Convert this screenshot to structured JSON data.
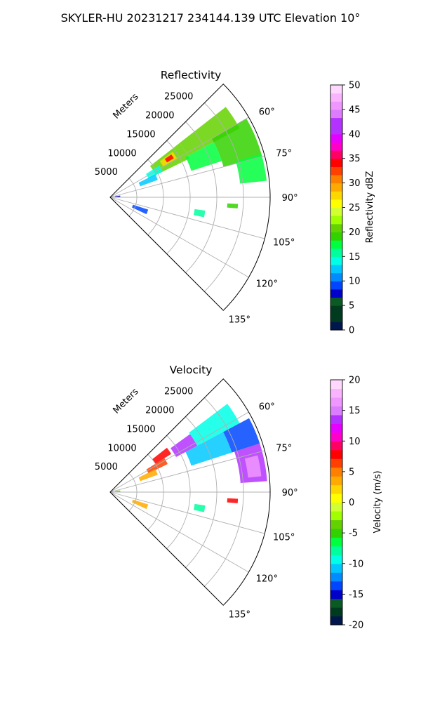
{
  "page": {
    "title": "SKYLER-HU  20231217  234144.139 UTC Elevation 10°"
  },
  "colors": {
    "grid": "#b0b0b0",
    "frame": "#000000",
    "reflectivity_scale": [
      "#00174e",
      "#003a1f",
      "#003a1f",
      "#0a5a23",
      "#0000c8",
      "#0046ff",
      "#008cff",
      "#00c8ff",
      "#00ffe6",
      "#00ff9c",
      "#00ff3c",
      "#32d200",
      "#64d200",
      "#a0ff00",
      "#d2ff32",
      "#ffff00",
      "#ffd700",
      "#ffaa00",
      "#ff8000",
      "#ff4000",
      "#ff0000",
      "#ff0064",
      "#ff00c8",
      "#e600ff",
      "#b432ff",
      "#b432ff",
      "#dc7dff",
      "#f096ff",
      "#fab4ff",
      "#ffd7ff"
    ],
    "velocity_scale": [
      "#00174e",
      "#003a1f",
      "#0a5a23",
      "#0000c8",
      "#0046ff",
      "#008cff",
      "#00c8ff",
      "#00ffe6",
      "#00ff9c",
      "#00ff3c",
      "#32d200",
      "#64d200",
      "#a0ff00",
      "#d2ff32",
      "#ffff00",
      "#ffd700",
      "#ffaa00",
      "#ff8000",
      "#ff4000",
      "#ff0000",
      "#ff0064",
      "#ff00c8",
      "#e600ff",
      "#b432ff",
      "#dc7dff",
      "#f096ff",
      "#fab4ff",
      "#ffd7ff"
    ]
  },
  "chart_data": [
    {
      "type": "heatmap",
      "projection": "polar-sector",
      "title": "Reflectivity",
      "radial_label": "Meters",
      "radial_ticks": [
        5000,
        10000,
        15000,
        20000,
        25000
      ],
      "rlim": [
        0,
        30000
      ],
      "azimuth_ticks": [
        60,
        75,
        90,
        105,
        120,
        135
      ],
      "azimuth_tick_labels": [
        "60°",
        "75°",
        "90°",
        "105°",
        "120°",
        "135°"
      ],
      "azimuth_range_deg": [
        45,
        135
      ],
      "grid": true,
      "colorbar": {
        "label": "Reflectivity dBZ",
        "range": [
          0,
          50
        ],
        "ticks": [
          0,
          5,
          10,
          15,
          20,
          25,
          30,
          35,
          40,
          45,
          50
        ]
      },
      "regions": [
        {
          "az": [
            52,
            64
          ],
          "r": [
            9500,
            16500
          ],
          "value": 20
        },
        {
          "az": [
            54,
            60
          ],
          "r": [
            11500,
            14500
          ],
          "value": 27
        },
        {
          "az": [
            55,
            58.5
          ],
          "r": [
            12500,
            14000
          ],
          "value": 34
        },
        {
          "az": [
            52,
            62
          ],
          "r": [
            16500,
            27500
          ],
          "value": 20
        },
        {
          "az": [
            60,
            75
          ],
          "r": [
            22000,
            29500
          ],
          "value": 19
        },
        {
          "az": [
            74,
            84
          ],
          "r": [
            24500,
            29500
          ],
          "value": 18
        },
        {
          "az": [
            62,
            72
          ],
          "r": [
            16000,
            22000
          ],
          "value": 17
        },
        {
          "az": [
            57,
            64
          ],
          "r": [
            8000,
            11000
          ],
          "value": 14
        },
        {
          "az": [
            63,
            70
          ],
          "r": [
            6000,
            9500
          ],
          "value": 13
        },
        {
          "az": [
            80,
            88
          ],
          "r": [
            900,
            1900
          ],
          "value": 8
        },
        {
          "az": [
            88,
            92
          ],
          "r": [
            300,
            1400
          ],
          "value": 3
        },
        {
          "az": [
            108,
            115
          ],
          "r": [
            4500,
            7500
          ],
          "value": 9
        },
        {
          "az": [
            98,
            102
          ],
          "r": [
            16000,
            18000
          ],
          "value": 15
        },
        {
          "az": [
            93,
            95
          ],
          "r": [
            22000,
            24000
          ],
          "value": 19
        }
      ]
    },
    {
      "type": "heatmap",
      "projection": "polar-sector",
      "title": "Velocity",
      "radial_label": "Meters",
      "radial_ticks": [
        5000,
        10000,
        15000,
        20000,
        25000
      ],
      "rlim": [
        0,
        30000
      ],
      "azimuth_ticks": [
        60,
        75,
        90,
        105,
        120,
        135
      ],
      "azimuth_tick_labels": [
        "60°",
        "75°",
        "90°",
        "105°",
        "120°",
        "135°"
      ],
      "azimuth_range_deg": [
        45,
        135
      ],
      "grid": true,
      "colorbar": {
        "label": "Velocity (m/s)",
        "range": [
          -20,
          20
        ],
        "ticks": [
          -20,
          -15,
          -10,
          -5,
          0,
          5,
          10,
          15,
          20
        ]
      },
      "regions": [
        {
          "az": [
            52,
            58
          ],
          "r": [
            10000,
            13500
          ],
          "value": 8
        },
        {
          "az": [
            58,
            64
          ],
          "r": [
            8000,
            12000
          ],
          "value": 6
        },
        {
          "az": [
            54,
            62
          ],
          "r": [
            14000,
            18500
          ],
          "value": 14
        },
        {
          "az": [
            53,
            62
          ],
          "r": [
            18500,
            27500
          ],
          "value": -9
        },
        {
          "az": [
            62,
            72
          ],
          "r": [
            16000,
            24000
          ],
          "value": -11
        },
        {
          "az": [
            62,
            72
          ],
          "r": [
            24000,
            29500
          ],
          "value": -13
        },
        {
          "az": [
            72,
            86
          ],
          "r": [
            24500,
            29500
          ],
          "value": 14
        },
        {
          "az": [
            76,
            84
          ],
          "r": [
            26000,
            28500
          ],
          "value": 17
        },
        {
          "az": [
            63,
            70
          ],
          "r": [
            6000,
            9500
          ],
          "value": 3
        },
        {
          "az": [
            80,
            88
          ],
          "r": [
            900,
            1900
          ],
          "value": -4
        },
        {
          "az": [
            88,
            92
          ],
          "r": [
            300,
            1400
          ],
          "value": 10
        },
        {
          "az": [
            108,
            115
          ],
          "r": [
            4500,
            7500
          ],
          "value": 3
        },
        {
          "az": [
            98,
            102
          ],
          "r": [
            16000,
            18000
          ],
          "value": -8
        },
        {
          "az": [
            93,
            95
          ],
          "r": [
            22000,
            24000
          ],
          "value": 8
        }
      ]
    }
  ]
}
